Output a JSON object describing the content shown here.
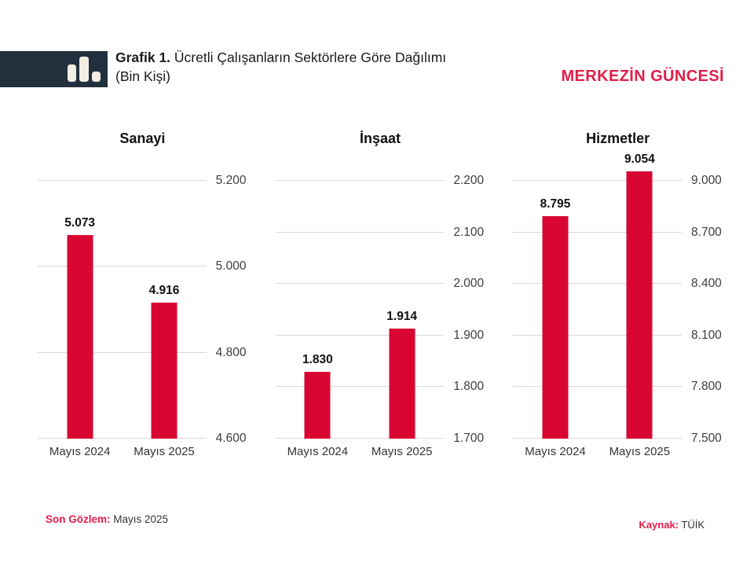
{
  "header": {
    "title_prefix": "Grafik 1.",
    "title_rest": " Ücretli Çalışanların Sektörlere Göre Dağılımı",
    "subtitle": "(Bin Kişi)",
    "brand": "MERKEZİN GÜNCESİ"
  },
  "footer": {
    "observation_label": "Son Gözlem:",
    "observation_value": " Mayıs 2025",
    "source_label": "Kaynak:",
    "source_value": " TÜİK"
  },
  "colors": {
    "bar": "#D80630",
    "accent_red": "#E11D48",
    "logo_bg": "#22303E",
    "logo_icon": "#F3EEE3",
    "gridline": "#D9D9D9"
  },
  "chart_data": [
    {
      "type": "bar",
      "title": "Sanayi",
      "categories": [
        "Mayıs 2024",
        "Mayıs 2025"
      ],
      "values": [
        5073,
        4916
      ],
      "value_labels": [
        "5.073",
        "4.916"
      ],
      "ylim": [
        4600,
        5200
      ],
      "yticks": [
        {
          "v": 4600,
          "label": "4.600"
        },
        {
          "v": 4800,
          "label": "4.800"
        },
        {
          "v": 5000,
          "label": "5.000"
        },
        {
          "v": 5200,
          "label": "5.200"
        }
      ],
      "ytick_side": "right",
      "grid": true,
      "xlabel": "",
      "ylabel": ""
    },
    {
      "type": "bar",
      "title": "İnşaat",
      "categories": [
        "Mayıs 2024",
        "Mayıs 2025"
      ],
      "values": [
        1830,
        1914
      ],
      "value_labels": [
        "1.830",
        "1.914"
      ],
      "ylim": [
        1700,
        2200
      ],
      "yticks": [
        {
          "v": 1700,
          "label": "1.700"
        },
        {
          "v": 1800,
          "label": "1.800"
        },
        {
          "v": 1900,
          "label": "1.900"
        },
        {
          "v": 2000,
          "label": "2.000"
        },
        {
          "v": 2100,
          "label": "2.100"
        },
        {
          "v": 2200,
          "label": "2.200"
        }
      ],
      "ytick_side": "right",
      "grid": true,
      "xlabel": "",
      "ylabel": ""
    },
    {
      "type": "bar",
      "title": "Hizmetler",
      "categories": [
        "Mayıs 2024",
        "Mayıs 2025"
      ],
      "values": [
        8795,
        9054
      ],
      "value_labels": [
        "8.795",
        "9.054"
      ],
      "ylim": [
        7500,
        9000
      ],
      "yticks": [
        {
          "v": 7500,
          "label": "7.500"
        },
        {
          "v": 7800,
          "label": "7.800"
        },
        {
          "v": 8100,
          "label": "8.100"
        },
        {
          "v": 8400,
          "label": "8.400"
        },
        {
          "v": 8700,
          "label": "8.700"
        },
        {
          "v": 9000,
          "label": "9.000"
        }
      ],
      "ytick_side": "right",
      "grid": true,
      "xlabel": "",
      "ylabel": ""
    }
  ]
}
